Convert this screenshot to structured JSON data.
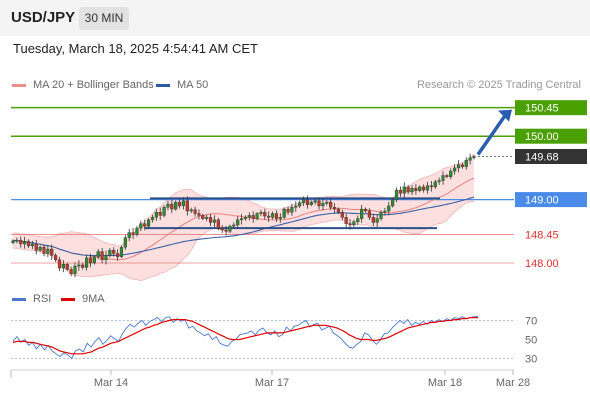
{
  "header": {
    "symbol": "USD/JPY",
    "timeframe": "30 MIN"
  },
  "timestamp": "Tuesday, March 18, 2025 4:54:41 AM CET",
  "legend": {
    "bollinger": {
      "label": "MA 20 + Bollinger Bands",
      "color": "#f08c8c"
    },
    "ma50": {
      "label": "MA 50",
      "color": "#2c5aa0"
    },
    "rsi": {
      "label": "RSI",
      "color": "#4a78d0"
    },
    "rsi_ma": {
      "label": "9MA",
      "color": "#e00000"
    }
  },
  "credit": "Research © 2025 Trading Central",
  "chart_data": [
    {
      "type": "candlestick",
      "panel": "price",
      "ylim": [
        147.7,
        150.65
      ],
      "levels": [
        {
          "value": 150.45,
          "label": "150.45",
          "color": "#4aa000",
          "kind": "resistance"
        },
        {
          "value": 150.0,
          "label": "150.00",
          "color": "#4aa000",
          "kind": "resistance"
        },
        {
          "value": 149.68,
          "label": "149.68",
          "color": "#333333",
          "kind": "last-price"
        },
        {
          "value": 149.0,
          "label": "149.00",
          "color": "#4a8ae8",
          "kind": "pivot"
        },
        {
          "value": 148.45,
          "label": "148.45",
          "color": "#e05050",
          "kind": "support"
        },
        {
          "value": 148.0,
          "label": "148.00",
          "color": "#e05050",
          "kind": "support"
        }
      ],
      "closes": [
        148.35,
        148.36,
        148.3,
        148.34,
        148.27,
        148.3,
        148.2,
        148.25,
        148.15,
        148.22,
        148.12,
        148.05,
        147.92,
        147.98,
        147.9,
        147.83,
        147.95,
        147.97,
        147.93,
        148.08,
        148.0,
        148.1,
        148.18,
        148.05,
        148.12,
        148.2,
        148.15,
        148.1,
        148.25,
        148.4,
        148.48,
        148.45,
        148.55,
        148.62,
        148.58,
        148.68,
        148.72,
        148.8,
        148.75,
        148.88,
        148.93,
        148.85,
        148.96,
        148.9,
        148.98,
        148.82,
        148.84,
        148.78,
        148.75,
        148.7,
        148.72,
        148.64,
        148.68,
        148.55,
        148.52,
        148.5,
        148.58,
        148.6,
        148.68,
        148.7,
        148.72,
        148.75,
        148.7,
        148.78,
        148.8,
        148.74,
        148.72,
        148.78,
        148.7,
        148.72,
        148.85,
        148.8,
        148.88,
        148.9,
        148.95,
        149.0,
        148.92,
        148.96,
        148.98,
        148.9,
        148.94,
        148.96,
        148.88,
        148.85,
        148.8,
        148.72,
        148.62,
        148.6,
        148.65,
        148.7,
        148.85,
        148.82,
        148.72,
        148.64,
        148.7,
        148.8,
        148.82,
        148.9,
        149.0,
        149.15,
        149.1,
        149.2,
        149.12,
        149.18,
        149.14,
        149.2,
        149.15,
        149.22,
        149.2,
        149.28,
        149.3,
        149.38,
        149.36,
        149.45,
        149.5,
        149.55,
        149.52,
        149.62,
        149.66,
        149.68
      ],
      "ma20_bollinger": {
        "upper_end": 149.45,
        "mid_end": 149.32,
        "lower_end": 149.05
      },
      "ma50_end": 149.0,
      "range_box": {
        "top": 149.02,
        "bottom": 148.55
      },
      "projection": {
        "from": 149.68,
        "to": 150.45
      }
    },
    {
      "type": "line",
      "panel": "rsi",
      "ylim": [
        20,
        80
      ],
      "yticks": [
        70,
        50,
        30
      ],
      "series": [
        {
          "name": "RSI",
          "color": "#4a78d0",
          "values": [
            48,
            53,
            47,
            50,
            44,
            47,
            40,
            45,
            39,
            44,
            38,
            35,
            32,
            36,
            34,
            30,
            38,
            40,
            37,
            46,
            42,
            48,
            52,
            45,
            49,
            54,
            51,
            48,
            56,
            62,
            66,
            63,
            67,
            70,
            65,
            69,
            71,
            73,
            69,
            73,
            74,
            68,
            72,
            69,
            71,
            62,
            64,
            59,
            57,
            54,
            56,
            50,
            53,
            46,
            44,
            43,
            48,
            50,
            55,
            56,
            57,
            59,
            55,
            60,
            62,
            57,
            55,
            59,
            53,
            55,
            63,
            59,
            64,
            65,
            68,
            70,
            63,
            66,
            67,
            60,
            62,
            64,
            57,
            54,
            51,
            46,
            42,
            41,
            45,
            48,
            57,
            55,
            49,
            45,
            49,
            56,
            57,
            62,
            66,
            70,
            67,
            71,
            65,
            68,
            66,
            69,
            66,
            70,
            68,
            71,
            69,
            72,
            70,
            73,
            72,
            74,
            72,
            73,
            74,
            74
          ]
        },
        {
          "name": "9MA",
          "color": "#e00000",
          "values": [
            47,
            48,
            48,
            48,
            47,
            47,
            46,
            45,
            44,
            43,
            42,
            40,
            38,
            37,
            36,
            35,
            35,
            35,
            35,
            36,
            37,
            39,
            41,
            42,
            44,
            46,
            47,
            48,
            50,
            52,
            54,
            56,
            58,
            60,
            62,
            63,
            65,
            66,
            68,
            69,
            70,
            71,
            71,
            71,
            71,
            70,
            69,
            67,
            65,
            63,
            61,
            59,
            57,
            55,
            53,
            51,
            50,
            50,
            50,
            51,
            52,
            53,
            54,
            55,
            56,
            57,
            57,
            57,
            57,
            57,
            58,
            59,
            60,
            61,
            62,
            63,
            64,
            65,
            65,
            65,
            65,
            64,
            63,
            62,
            60,
            58,
            55,
            53,
            51,
            50,
            50,
            50,
            49,
            49,
            50,
            51,
            52,
            54,
            56,
            58,
            60,
            62,
            63,
            64,
            65,
            66,
            67,
            68,
            68,
            69,
            69,
            70,
            70,
            71,
            71,
            72,
            72,
            73,
            73,
            73
          ]
        }
      ]
    }
  ],
  "xaxis": {
    "ticks": [
      "Mar 14",
      "Mar 17",
      "Mar 18",
      "Mar 28"
    ]
  }
}
